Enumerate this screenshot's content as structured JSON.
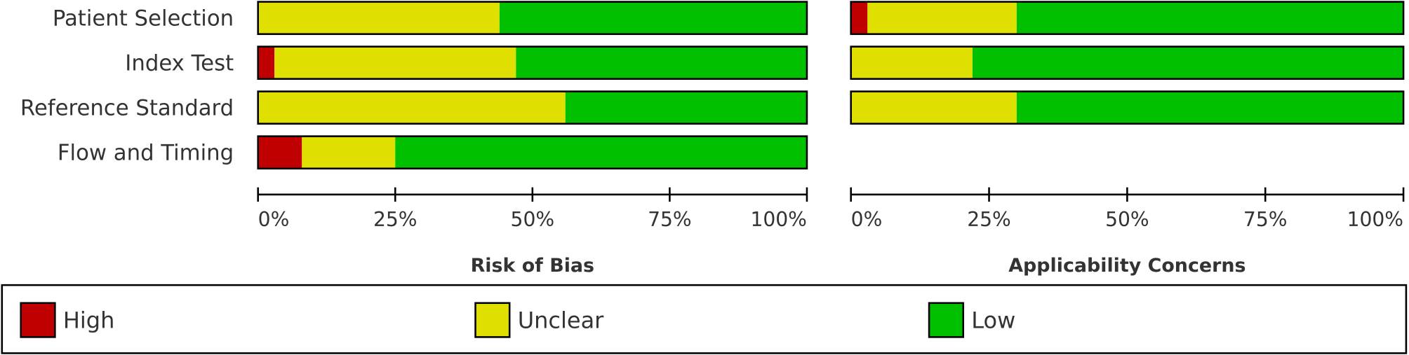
{
  "chart_data": {
    "type": "stacked-bar",
    "orientation": "horizontal",
    "categories": [
      "Patient Selection",
      "Index Test",
      "Reference Standard",
      "Flow and Timing"
    ],
    "panels": [
      "Risk of Bias",
      "Applicability Concerns"
    ],
    "series": [
      {
        "name": "High",
        "color": "#c00000",
        "values": [
          [
            0,
            3,
            0,
            8
          ],
          [
            3,
            0,
            0,
            null
          ]
        ]
      },
      {
        "name": "Unclear",
        "color": "#e0e000",
        "values": [
          [
            44,
            44,
            56,
            17
          ],
          [
            27,
            22,
            30,
            null
          ]
        ]
      },
      {
        "name": "Low",
        "color": "#00c000",
        "values": [
          [
            56,
            53,
            44,
            75
          ],
          [
            70,
            78,
            70,
            null
          ]
        ]
      }
    ],
    "xlim": [
      0,
      100
    ],
    "xticks": [
      {
        "value": 0,
        "label": "0%"
      },
      {
        "value": 25,
        "label": "25%"
      },
      {
        "value": 50,
        "label": "50%"
      },
      {
        "value": 75,
        "label": "75%"
      },
      {
        "value": 100,
        "label": "100%"
      }
    ]
  }
}
